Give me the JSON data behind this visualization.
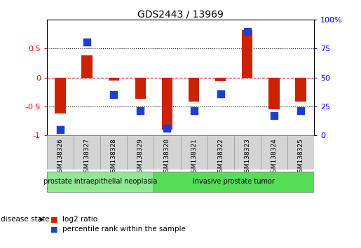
{
  "title": "GDS2443 / 13969",
  "samples": [
    "GSM138326",
    "GSM138327",
    "GSM138328",
    "GSM138329",
    "GSM138320",
    "GSM138321",
    "GSM138322",
    "GSM138323",
    "GSM138324",
    "GSM138325"
  ],
  "log2_ratio": [
    -0.62,
    0.38,
    -0.05,
    -0.37,
    -0.9,
    -0.42,
    -0.07,
    0.82,
    -0.55,
    -0.42
  ],
  "percentile_rank": [
    5,
    81,
    35,
    21,
    6,
    21,
    36,
    90,
    17,
    21
  ],
  "ylim": [
    -1.0,
    1.0
  ],
  "bar_color": "#cc2200",
  "dot_color": "#1c3fcc",
  "groups": [
    {
      "label": "prostate intraepithelial neoplasia",
      "start": 0,
      "end": 4,
      "color": "#90e890"
    },
    {
      "label": "invasive prostate tumor",
      "start": 4,
      "end": 10,
      "color": "#55dd55"
    }
  ],
  "legend_items": [
    {
      "label": "log2 ratio",
      "color": "#cc2200"
    },
    {
      "label": "percentile rank within the sample",
      "color": "#1c3fcc"
    }
  ],
  "yticks_left": [
    -1.0,
    -0.5,
    0.0,
    0.5
  ],
  "ytick_labels_left": [
    "-1",
    "-0.5",
    "0",
    "0.5"
  ],
  "yticks_right": [
    0,
    25,
    50,
    75,
    100
  ],
  "ytick_labels_right": [
    "0",
    "25",
    "50",
    "75",
    "100%"
  ],
  "bar_width": 0.4,
  "dot_size": 55,
  "disease_state_label": "disease state",
  "plot_bg_color": "white",
  "label_box_color": "#d4d4d4",
  "label_box_edge": "#999999"
}
